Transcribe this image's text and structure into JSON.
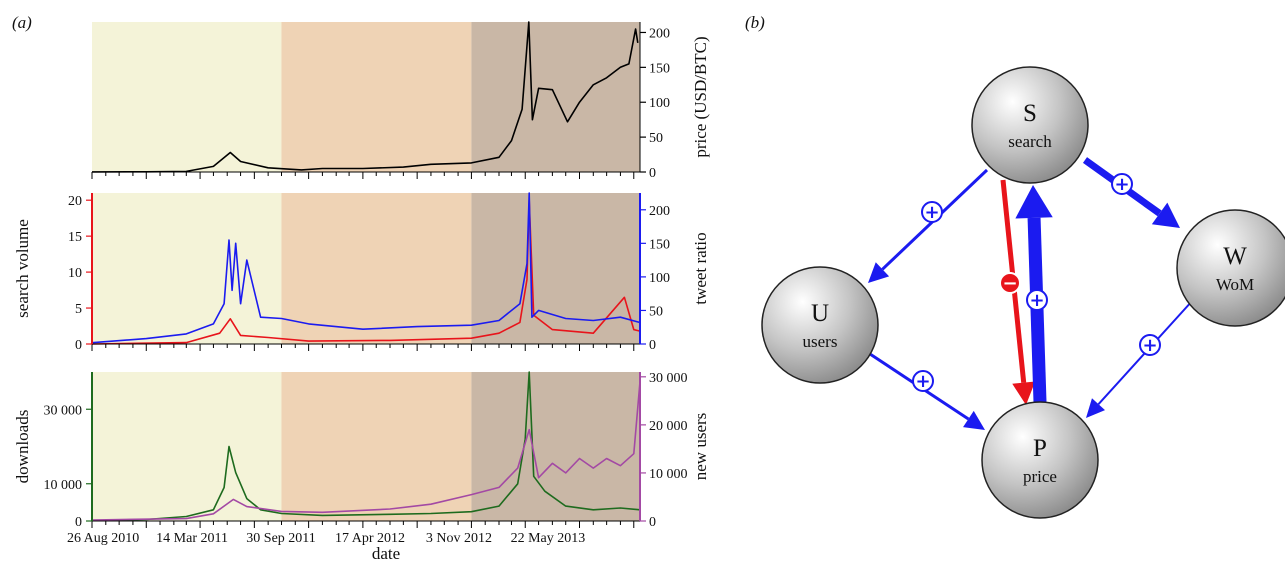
{
  "panel_a_label": "(a)",
  "panel_b_label": "(b)",
  "chart_data": [
    {
      "type": "line",
      "panel": "price",
      "xlabel": "",
      "ylabel_right": "price (USD/BTC)",
      "y_right_ticks": [
        "0",
        "50",
        "100",
        "150",
        "200"
      ],
      "y_right_range": [
        0,
        215
      ],
      "x_range": [
        "2010-08-01",
        "2013-12-15"
      ],
      "phases": [
        {
          "start": "2010-08-01",
          "end": "2011-10-01",
          "color": "#f4f3d8"
        },
        {
          "start": "2011-10-01",
          "end": "2012-12-01",
          "color": "#efd3b5"
        },
        {
          "start": "2012-12-01",
          "end": "2013-12-15",
          "color": "#c9b7a6"
        }
      ],
      "series": [
        {
          "color": "#000000",
          "x": [
            "2010-08-01",
            "2010-12-01",
            "2011-03-01",
            "2011-05-01",
            "2011-06-08",
            "2011-07-01",
            "2011-09-01",
            "2011-11-15",
            "2012-01-01",
            "2012-04-01",
            "2012-07-01",
            "2012-09-01",
            "2012-12-01",
            "2013-02-01",
            "2013-03-01",
            "2013-03-25",
            "2013-04-09",
            "2013-04-17",
            "2013-05-01",
            "2013-06-01",
            "2013-07-05",
            "2013-08-01",
            "2013-09-01",
            "2013-10-01",
            "2013-11-01",
            "2013-11-20",
            "2013-12-05",
            "2013-12-10"
          ],
          "y": [
            0.1,
            0.3,
            0.9,
            8,
            28,
            15,
            6,
            3,
            5,
            5,
            7,
            11,
            13,
            21,
            45,
            90,
            215,
            75,
            120,
            118,
            72,
            100,
            125,
            135,
            150,
            155,
            205,
            185
          ]
        }
      ]
    },
    {
      "type": "line",
      "panel": "search-tweets",
      "xlabel": "",
      "ylabel_left": "search volume",
      "ylabel_right": "tweet ratio",
      "y_left_ticks": [
        "0",
        "5",
        "10",
        "15",
        "20"
      ],
      "y_left_range": [
        0,
        21
      ],
      "y_right_ticks": [
        "0",
        "50",
        "100",
        "150",
        "200"
      ],
      "y_right_range": [
        0,
        225
      ],
      "series": [
        {
          "axis": "left",
          "color": "#e8141b",
          "x": [
            "2010-08-01",
            "2011-03-01",
            "2011-05-15",
            "2011-06-08",
            "2011-07-01",
            "2011-09-01",
            "2011-12-01",
            "2012-06-01",
            "2012-12-01",
            "2013-02-01",
            "2013-03-20",
            "2013-04-05",
            "2013-04-10",
            "2013-04-20",
            "2013-06-01",
            "2013-09-01",
            "2013-11-10",
            "2013-12-01",
            "2013-12-15"
          ],
          "y": [
            0,
            0.2,
            1.5,
            3.5,
            1.2,
            0.9,
            0.4,
            0.5,
            0.8,
            1.5,
            3,
            9,
            20,
            4,
            2,
            1.5,
            6.5,
            2,
            1.8
          ]
        },
        {
          "axis": "right",
          "color": "#1b1bf0",
          "x": [
            "2010-08-01",
            "2010-12-01",
            "2011-03-01",
            "2011-05-01",
            "2011-05-25",
            "2011-06-05",
            "2011-06-12",
            "2011-06-20",
            "2011-07-01",
            "2011-07-15",
            "2011-08-15",
            "2011-10-01",
            "2011-12-01",
            "2012-04-01",
            "2012-08-01",
            "2012-12-01",
            "2013-02-01",
            "2013-03-20",
            "2013-04-05",
            "2013-04-10",
            "2013-04-16",
            "2013-05-01",
            "2013-07-01",
            "2013-09-01",
            "2013-11-01",
            "2013-12-15"
          ],
          "y": [
            2,
            8,
            15,
            30,
            60,
            155,
            80,
            150,
            60,
            125,
            40,
            38,
            30,
            22,
            26,
            28,
            35,
            60,
            120,
            225,
            40,
            50,
            38,
            35,
            40,
            32
          ]
        }
      ]
    },
    {
      "type": "line",
      "panel": "downloads-users",
      "xlabel": "date",
      "ylabel_left": "downloads",
      "ylabel_right": "new users",
      "y_left_ticks": [
        "0",
        "10 000",
        "30 000"
      ],
      "y_left_range": [
        0,
        40000
      ],
      "y_right_ticks": [
        "0",
        "10 000",
        "20 000",
        "30 000"
      ],
      "y_right_range": [
        0,
        31000
      ],
      "x_tick_labels": [
        "26 Aug 2010",
        "14 Mar 2011",
        "30 Sep 2011",
        "17 Apr 2012",
        "3 Nov 2012",
        "22 May 2013"
      ],
      "x_tick_dates": [
        "2010-08-26",
        "2011-03-14",
        "2011-09-30",
        "2012-04-17",
        "2012-11-03",
        "2013-05-22"
      ],
      "series": [
        {
          "axis": "left",
          "color": "#1e6b1e",
          "x": [
            "2010-08-01",
            "2010-12-01",
            "2011-03-01",
            "2011-05-01",
            "2011-05-25",
            "2011-06-05",
            "2011-06-20",
            "2011-07-15",
            "2011-08-15",
            "2011-10-01",
            "2012-01-01",
            "2012-06-01",
            "2012-09-01",
            "2012-12-01",
            "2013-02-01",
            "2013-03-15",
            "2013-04-01",
            "2013-04-10",
            "2013-04-20",
            "2013-05-15",
            "2013-07-01",
            "2013-09-01",
            "2013-11-01",
            "2013-12-15"
          ],
          "y": [
            100,
            400,
            1200,
            3000,
            9000,
            20000,
            13000,
            6000,
            3000,
            2000,
            1500,
            1800,
            2000,
            2500,
            4000,
            10000,
            22000,
            40000,
            12000,
            8000,
            4000,
            3000,
            3500,
            3000
          ]
        },
        {
          "axis": "right",
          "color": "#a349a4",
          "x": [
            "2010-08-01",
            "2011-03-01",
            "2011-05-01",
            "2011-06-15",
            "2011-07-15",
            "2011-10-01",
            "2012-01-01",
            "2012-06-01",
            "2012-09-01",
            "2012-12-01",
            "2013-02-01",
            "2013-03-15",
            "2013-04-10",
            "2013-05-01",
            "2013-06-01",
            "2013-07-01",
            "2013-08-01",
            "2013-09-01",
            "2013-10-01",
            "2013-11-01",
            "2013-12-01",
            "2013-12-15"
          ],
          "y": [
            200,
            500,
            1500,
            4500,
            3000,
            2000,
            1800,
            2500,
            3500,
            5500,
            7000,
            11000,
            19000,
            9000,
            12000,
            10000,
            13000,
            11000,
            13000,
            11500,
            14000,
            29000
          ]
        }
      ]
    }
  ],
  "diagram": {
    "nodes": [
      {
        "id": "S",
        "letter": "S",
        "name": "search"
      },
      {
        "id": "W",
        "letter": "W",
        "name": "WoM"
      },
      {
        "id": "U",
        "letter": "U",
        "name": "users"
      },
      {
        "id": "P",
        "letter": "P",
        "name": "price"
      }
    ],
    "edges": [
      {
        "from": "S",
        "to": "U",
        "sign": "+",
        "color": "#1b1bf0",
        "weight": "normal"
      },
      {
        "from": "S",
        "to": "W",
        "sign": "+",
        "color": "#1b1bf0",
        "weight": "heavy"
      },
      {
        "from": "S",
        "to": "P",
        "sign": "−",
        "color": "#e8141b",
        "weight": "medium"
      },
      {
        "from": "P",
        "to": "S",
        "sign": "+",
        "color": "#1b1bf0",
        "weight": "heaviest"
      },
      {
        "from": "U",
        "to": "P",
        "sign": "+",
        "color": "#1b1bf0",
        "weight": "normal"
      },
      {
        "from": "W",
        "to": "P",
        "sign": "+",
        "color": "#1b1bf0",
        "weight": "thin"
      }
    ]
  }
}
